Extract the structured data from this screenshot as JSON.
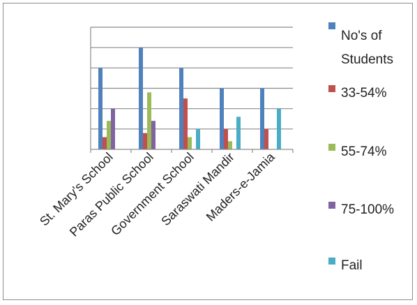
{
  "chart_data": {
    "type": "bar",
    "title": "",
    "xlabel": "",
    "ylabel": "",
    "ylim": [
      0,
      6
    ],
    "grid": true,
    "legend_position": "right",
    "categories": [
      "St. Mary's School",
      "Paras Public School",
      "Government School",
      "Saraswati Mandir",
      "Maders-e-Jamia"
    ],
    "series": [
      {
        "name": "No's of Students",
        "color": "#4f81bd",
        "values": [
          4,
          5,
          4,
          3,
          3
        ]
      },
      {
        "name": "33-54%",
        "color": "#c0504d",
        "values": [
          0.6,
          0.8,
          2.5,
          1,
          1
        ]
      },
      {
        "name": "55-74%",
        "color": "#9bbb59",
        "values": [
          1.4,
          2.8,
          0.6,
          0.4,
          0
        ]
      },
      {
        "name": "75-100%",
        "color": "#8064a2",
        "values": [
          2,
          1.4,
          0,
          0,
          0
        ]
      },
      {
        "name": "Fail",
        "color": "#4bacc6",
        "values": [
          0,
          0,
          1,
          1.6,
          2
        ]
      }
    ]
  }
}
